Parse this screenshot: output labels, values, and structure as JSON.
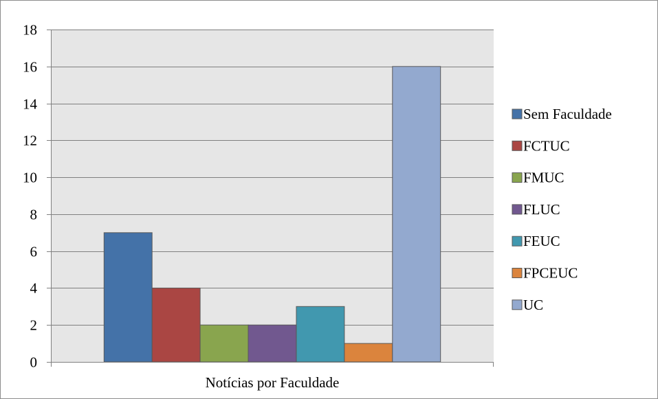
{
  "chart_data": {
    "type": "bar",
    "title": "",
    "xlabel": "",
    "ylabel": "",
    "categories": [
      "Notícias por Faculdade"
    ],
    "series": [
      {
        "name": "Sem Faculdade",
        "values": [
          7
        ],
        "color": "#4472a8"
      },
      {
        "name": "FCTUC",
        "values": [
          4
        ],
        "color": "#aa4643"
      },
      {
        "name": "FMUC",
        "values": [
          2
        ],
        "color": "#89a54e"
      },
      {
        "name": "FLUC",
        "values": [
          2
        ],
        "color": "#71588f"
      },
      {
        "name": "FEUC",
        "values": [
          3
        ],
        "color": "#4198af"
      },
      {
        "name": "FPCEUC",
        "values": [
          1
        ],
        "color": "#db843d"
      },
      {
        "name": "UC",
        "values": [
          16
        ],
        "color": "#93a9cf"
      }
    ],
    "ylim": [
      0,
      18
    ],
    "yticks": [
      "0",
      "2",
      "4",
      "6",
      "8",
      "10",
      "12",
      "14",
      "16",
      "18"
    ],
    "grid": true,
    "plot_background": "#e6e6e6",
    "legend_position": "right"
  }
}
